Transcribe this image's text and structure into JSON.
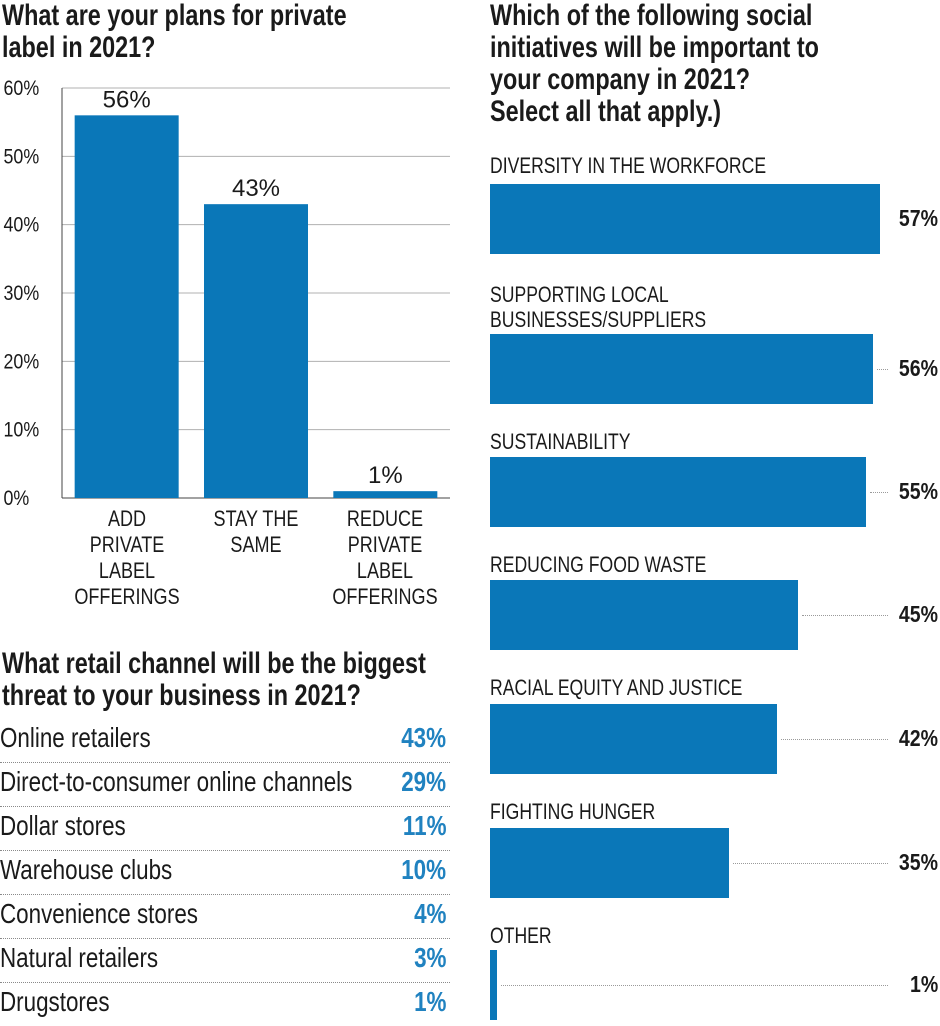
{
  "colors": {
    "bar": "#0a77b8",
    "value_accent": "#2082c0",
    "text": "#1a1a1a"
  },
  "q1": {
    "title_line1": "What are your plans for private",
    "title_line2": "label in 2021?"
  },
  "q2": {
    "title_line1": "What retail channel will be the biggest",
    "title_line2": "threat to your business in 2021?",
    "rows": [
      {
        "label": "Online retailers",
        "value": "43%"
      },
      {
        "label": "Direct-to-consumer online channels",
        "value": "29%"
      },
      {
        "label": "Dollar stores",
        "value": "11%"
      },
      {
        "label": "Warehouse clubs",
        "value": "10%"
      },
      {
        "label": "Convenience stores",
        "value": "4%"
      },
      {
        "label": "Natural retailers",
        "value": "3%"
      },
      {
        "label": "Drugstores",
        "value": "1%"
      }
    ]
  },
  "q3": {
    "title_line1": "Which of the following social",
    "title_line2": "initiatives will be important to",
    "title_line3": "your company in 2021?",
    "title_line4": "Select all that apply.)"
  },
  "chart_data": [
    {
      "type": "bar",
      "title": "What are your plans for private label in 2021?",
      "categories": [
        "ADD PRIVATE\nLABEL\nOFFERINGS",
        "STAY THE\nSAME",
        "REDUCE\nPRIVATE\nLABEL\nOFFERINGS"
      ],
      "values": [
        56,
        43,
        1
      ],
      "value_labels": [
        "56%",
        "43%",
        "1%"
      ],
      "ylim": [
        0,
        60
      ],
      "yticks": [
        "0%",
        "10%",
        "20%",
        "30%",
        "40%",
        "50%",
        "60%"
      ],
      "grid": true
    },
    {
      "type": "table",
      "title": "What retail channel will be the biggest threat to your business in 2021?",
      "categories": [
        "Online retailers",
        "Direct-to-consumer online channels",
        "Dollar stores",
        "Warehouse clubs",
        "Convenience stores",
        "Natural retailers",
        "Drugstores"
      ],
      "values": [
        43,
        29,
        11,
        10,
        4,
        3,
        1
      ]
    },
    {
      "type": "bar",
      "orientation": "horizontal",
      "title": "Which of the following social initiatives will be important to your company in 2021? Select all that apply.)",
      "categories": [
        "DIVERSITY IN THE WORKFORCE",
        "SUPPORTING LOCAL\nBUSINESSES/SUPPLIERS",
        "SUSTAINABILITY",
        "REDUCING FOOD WASTE",
        "RACIAL EQUITY AND JUSTICE",
        "FIGHTING HUNGER",
        "OTHER"
      ],
      "values": [
        57,
        56,
        55,
        45,
        42,
        35,
        1
      ],
      "value_labels": [
        "57%",
        "56%",
        "55%",
        "45%",
        "42%",
        "35%",
        "1%"
      ]
    }
  ]
}
